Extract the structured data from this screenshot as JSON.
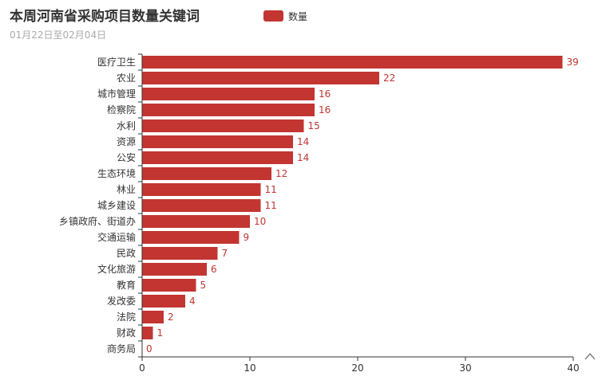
{
  "title": "本周河南省采购项目数量关键词",
  "subtitle": "01月22日至02月04日",
  "toolbox_icon": "caret-up-icon",
  "colors": {
    "bar": "#c23531",
    "axis": "#333333",
    "title": "#333333",
    "subtitle": "#aaaaaa"
  },
  "chart_data": {
    "type": "bar",
    "orientation": "horizontal",
    "title": "本周河南省采购项目数量关键词",
    "subtitle": "01月22日至02月04日",
    "categories": [
      "医疗卫生",
      "农业",
      "城市管理",
      "检察院",
      "水利",
      "资源",
      "公安",
      "生态环境",
      "林业",
      "城乡建设",
      "乡镇政府、街道办",
      "交通运输",
      "民政",
      "文化旅游",
      "教育",
      "发改委",
      "法院",
      "财政",
      "商务局"
    ],
    "series": [
      {
        "name": "数量",
        "values": [
          39,
          22,
          16,
          16,
          15,
          14,
          14,
          12,
          11,
          11,
          10,
          9,
          7,
          6,
          5,
          4,
          2,
          1,
          0
        ]
      }
    ],
    "xlim": [
      0,
      40
    ],
    "xticks": [
      0,
      10,
      20,
      30,
      40
    ],
    "grid": false,
    "legend_position": "top-center",
    "data_labels": true
  }
}
